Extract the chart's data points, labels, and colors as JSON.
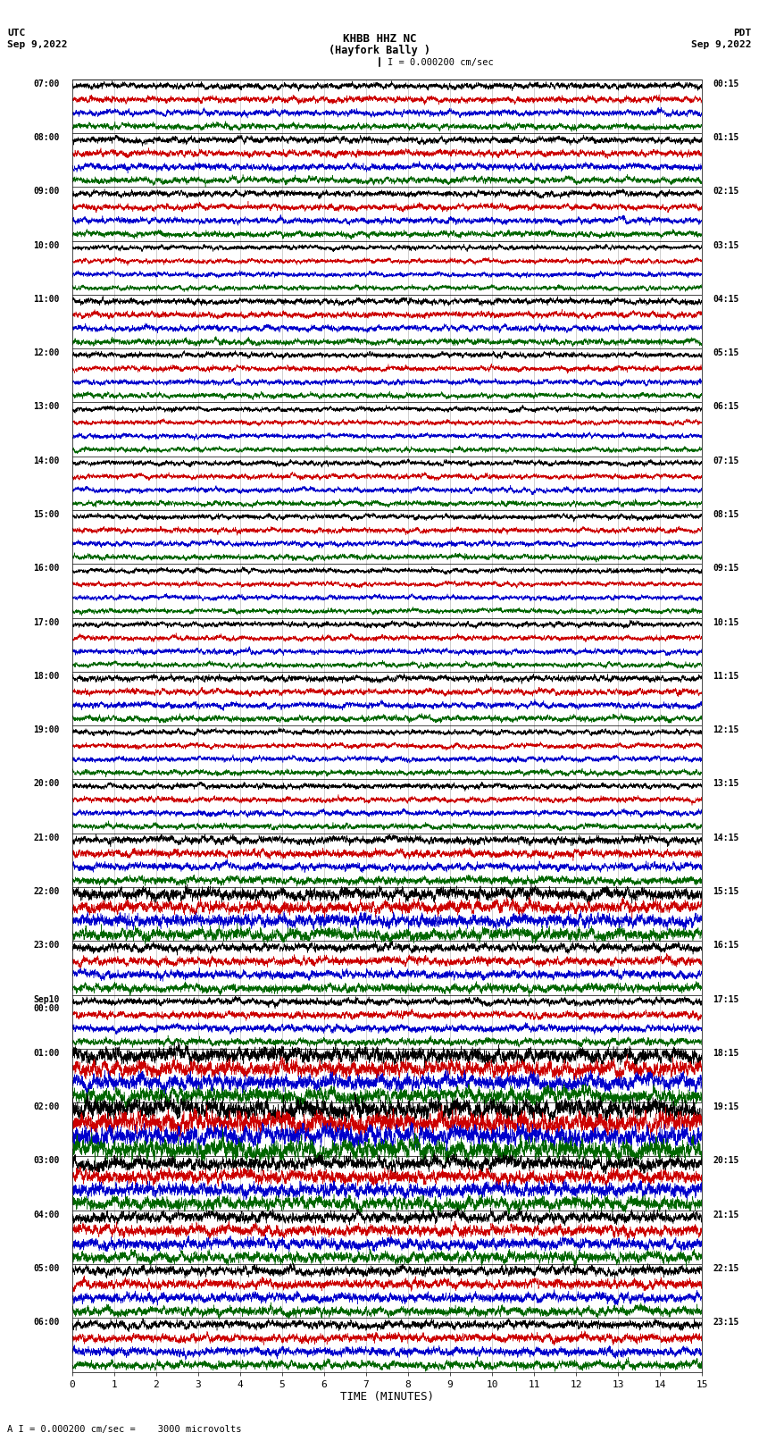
{
  "title_line1": "KHBB HHZ NC",
  "title_line2": "(Hayfork Bally )",
  "scale_label": "I = 0.000200 cm/sec",
  "bottom_label": "A I = 0.000200 cm/sec =    3000 microvolts",
  "utc_label": "UTC",
  "date_left": "Sep 9,2022",
  "pdt_label": "PDT",
  "date_right": "Sep 9,2022",
  "xlabel": "TIME (MINUTES)",
  "xticks": [
    0,
    1,
    2,
    3,
    4,
    5,
    6,
    7,
    8,
    9,
    10,
    11,
    12,
    13,
    14,
    15
  ],
  "background_color": "#ffffff",
  "trace_colors": [
    "#000000",
    "#cc0000",
    "#0000cc",
    "#006600"
  ],
  "rows": [
    {
      "utc": "07:00",
      "pdt": "00:15"
    },
    {
      "utc": "08:00",
      "pdt": "01:15"
    },
    {
      "utc": "09:00",
      "pdt": "02:15"
    },
    {
      "utc": "10:00",
      "pdt": "03:15"
    },
    {
      "utc": "11:00",
      "pdt": "04:15"
    },
    {
      "utc": "12:00",
      "pdt": "05:15"
    },
    {
      "utc": "13:00",
      "pdt": "06:15"
    },
    {
      "utc": "14:00",
      "pdt": "07:15"
    },
    {
      "utc": "15:00",
      "pdt": "08:15"
    },
    {
      "utc": "16:00",
      "pdt": "09:15"
    },
    {
      "utc": "17:00",
      "pdt": "10:15"
    },
    {
      "utc": "18:00",
      "pdt": "11:15"
    },
    {
      "utc": "19:00",
      "pdt": "12:15"
    },
    {
      "utc": "20:00",
      "pdt": "13:15"
    },
    {
      "utc": "21:00",
      "pdt": "14:15"
    },
    {
      "utc": "22:00",
      "pdt": "15:15"
    },
    {
      "utc": "23:00",
      "pdt": "16:15"
    },
    {
      "utc": "Sep10\n00:00",
      "pdt": "17:15"
    },
    {
      "utc": "01:00",
      "pdt": "18:15"
    },
    {
      "utc": "02:00",
      "pdt": "19:15"
    },
    {
      "utc": "03:00",
      "pdt": "20:15"
    },
    {
      "utc": "04:00",
      "pdt": "21:15"
    },
    {
      "utc": "05:00",
      "pdt": "22:15"
    },
    {
      "utc": "06:00",
      "pdt": "23:15"
    }
  ],
  "amplitudes": [
    0.28,
    0.3,
    0.28,
    0.22,
    0.28,
    0.24,
    0.22,
    0.24,
    0.24,
    0.22,
    0.24,
    0.28,
    0.24,
    0.25,
    0.35,
    0.55,
    0.38,
    0.32,
    0.7,
    0.9,
    0.6,
    0.5,
    0.42,
    0.38
  ],
  "seed": 42,
  "n_samples": 18000,
  "downsample": 3
}
